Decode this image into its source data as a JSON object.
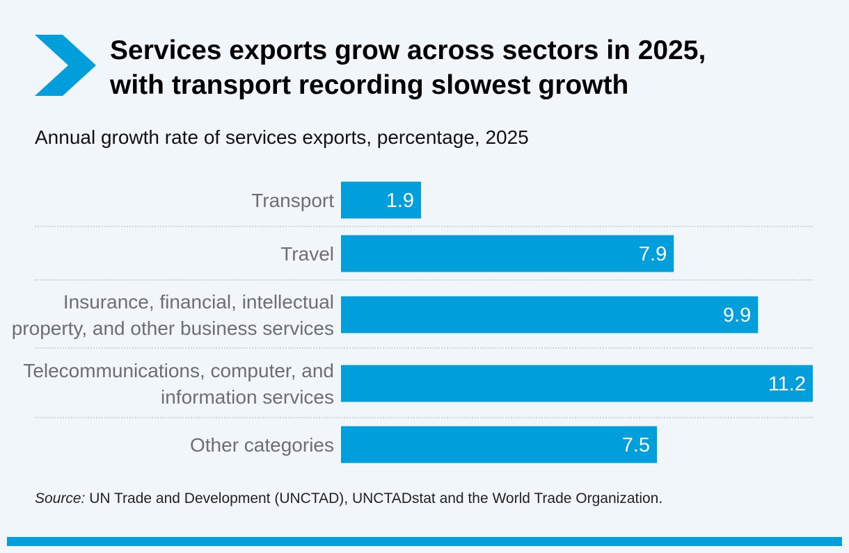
{
  "header": {
    "title_line1": "Services exports grow across sectors in 2025,",
    "title_line2": "with transport recording slowest growth",
    "subtitle": "Annual growth rate of services exports, percentage, 2025"
  },
  "chart_data": {
    "type": "bar",
    "orientation": "horizontal",
    "categories": [
      [
        "Transport"
      ],
      [
        "Travel"
      ],
      [
        "Insurance, financial, intellectual",
        "property, and other business services"
      ],
      [
        "Telecommunications, computer, and",
        "information services"
      ],
      [
        "Other categories"
      ]
    ],
    "values": [
      1.9,
      7.9,
      9.9,
      11.2,
      7.5
    ],
    "value_labels": [
      "1.9",
      "7.9",
      "9.9",
      "11.2",
      "7.5"
    ],
    "xlim": [
      0,
      11.2
    ],
    "grid": false,
    "legend": "none",
    "bar_color": "#009edb",
    "label_color": "#6d6e71",
    "separator_color": "#b9bec3"
  },
  "footer": {
    "source_label": "Source:",
    "source_text": " UN Trade and Development (UNCTAD), UNCTADstat and the World Trade Organization."
  },
  "colors": {
    "accent": "#009edb",
    "background": "#f1f6fa"
  }
}
